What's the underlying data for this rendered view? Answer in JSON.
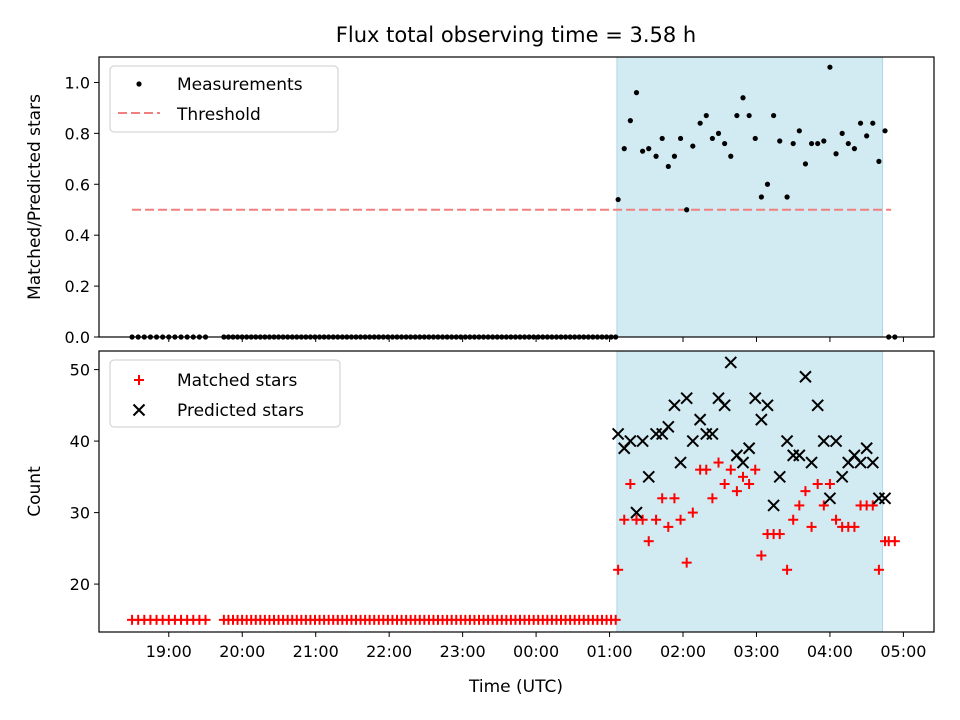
{
  "title": "Flux total observing time = 3.58 h",
  "colors": {
    "measurement": "#000000",
    "threshold": "#f08080",
    "matched": "#ff0000",
    "predicted": "#000000",
    "shade": "#add8e6"
  },
  "chart_data": [
    {
      "type": "scatter",
      "ylabel": "Matched/Predicted stars",
      "ylim": [
        0,
        1.1
      ],
      "yticks": [
        0.0,
        0.2,
        0.4,
        0.6,
        0.8,
        1.0
      ],
      "ytick_labels": [
        "0.0",
        "0.2",
        "0.4",
        "0.6",
        "0.8",
        "1.0"
      ],
      "legend": {
        "placement": "top-left",
        "entries": [
          "Measurements",
          "Threshold"
        ]
      },
      "shaded_span": [
        "01:06",
        "04:43"
      ],
      "threshold": {
        "name": "Threshold",
        "value": 0.5,
        "x_range": [
          "18:30",
          "04:50"
        ]
      },
      "series": [
        {
          "name": "Measurements",
          "zero_segments": [
            [
              "18:30",
              "19:30",
              13
            ],
            [
              "19:45",
              "01:05",
              87
            ],
            [
              "04:48",
              "04:53",
              2
            ]
          ],
          "points": [
            [
              "01:07",
              0.54
            ],
            [
              "01:12",
              0.74
            ],
            [
              "01:17",
              0.85
            ],
            [
              "01:22",
              0.96
            ],
            [
              "01:27",
              0.73
            ],
            [
              "01:32",
              0.74
            ],
            [
              "01:38",
              0.71
            ],
            [
              "01:43",
              0.78
            ],
            [
              "01:48",
              0.67
            ],
            [
              "01:53",
              0.71
            ],
            [
              "01:58",
              0.78
            ],
            [
              "02:03",
              0.5
            ],
            [
              "02:08",
              0.75
            ],
            [
              "02:14",
              0.84
            ],
            [
              "02:19",
              0.87
            ],
            [
              "02:24",
              0.78
            ],
            [
              "02:29",
              0.8
            ],
            [
              "02:34",
              0.76
            ],
            [
              "02:39",
              0.71
            ],
            [
              "02:44",
              0.87
            ],
            [
              "02:49",
              0.94
            ],
            [
              "02:54",
              0.87
            ],
            [
              "02:59",
              0.78
            ],
            [
              "03:04",
              0.55
            ],
            [
              "03:09",
              0.6
            ],
            [
              "03:14",
              0.87
            ],
            [
              "03:19",
              0.77
            ],
            [
              "03:25",
              0.55
            ],
            [
              "03:30",
              0.76
            ],
            [
              "03:35",
              0.81
            ],
            [
              "03:40",
              0.68
            ],
            [
              "03:45",
              0.76
            ],
            [
              "03:50",
              0.76
            ],
            [
              "03:55",
              0.77
            ],
            [
              "04:00",
              1.06
            ],
            [
              "04:05",
              0.72
            ],
            [
              "04:10",
              0.8
            ],
            [
              "04:15",
              0.76
            ],
            [
              "04:20",
              0.74
            ],
            [
              "04:25",
              0.84
            ],
            [
              "04:30",
              0.79
            ],
            [
              "04:35",
              0.84
            ],
            [
              "04:40",
              0.69
            ],
            [
              "04:45",
              0.81
            ]
          ]
        }
      ]
    },
    {
      "type": "scatter",
      "xlabel": "Time (UTC)",
      "ylabel": "Count",
      "ylim": [
        13.3,
        52.6
      ],
      "yticks": [
        20,
        30,
        40,
        50
      ],
      "ytick_labels": [
        "20",
        "30",
        "40",
        "50"
      ],
      "xticks": [
        "19:00",
        "20:00",
        "21:00",
        "22:00",
        "23:00",
        "00:00",
        "01:00",
        "02:00",
        "03:00",
        "04:00",
        "05:00"
      ],
      "xlim": [
        "18:03",
        "05:25"
      ],
      "legend": {
        "placement": "top-left",
        "entries": [
          "Matched stars",
          "Predicted stars"
        ]
      },
      "shaded_span": [
        "01:06",
        "04:43"
      ],
      "series": [
        {
          "name": "Matched stars",
          "constant_segments": [
            [
              "18:30",
              "19:30",
              13,
              15
            ],
            [
              "19:45",
              "01:05",
              87,
              15
            ]
          ],
          "points": [
            [
              "01:07",
              22
            ],
            [
              "01:12",
              29
            ],
            [
              "01:17",
              34
            ],
            [
              "01:22",
              29
            ],
            [
              "01:27",
              29
            ],
            [
              "01:32",
              26
            ],
            [
              "01:38",
              29
            ],
            [
              "01:43",
              32
            ],
            [
              "01:48",
              28
            ],
            [
              "01:53",
              32
            ],
            [
              "01:58",
              29
            ],
            [
              "02:03",
              23
            ],
            [
              "02:08",
              30
            ],
            [
              "02:14",
              36
            ],
            [
              "02:19",
              36
            ],
            [
              "02:24",
              32
            ],
            [
              "02:29",
              37
            ],
            [
              "02:34",
              34
            ],
            [
              "02:39",
              36
            ],
            [
              "02:44",
              33
            ],
            [
              "02:49",
              35
            ],
            [
              "02:54",
              34
            ],
            [
              "02:59",
              36
            ],
            [
              "03:04",
              24
            ],
            [
              "03:09",
              27
            ],
            [
              "03:14",
              27
            ],
            [
              "03:19",
              27
            ],
            [
              "03:25",
              22
            ],
            [
              "03:30",
              29
            ],
            [
              "03:35",
              31
            ],
            [
              "03:40",
              33
            ],
            [
              "03:45",
              28
            ],
            [
              "03:50",
              34
            ],
            [
              "03:55",
              31
            ],
            [
              "04:00",
              34
            ],
            [
              "04:05",
              29
            ],
            [
              "04:10",
              28
            ],
            [
              "04:15",
              28
            ],
            [
              "04:20",
              28
            ],
            [
              "04:25",
              31
            ],
            [
              "04:30",
              31
            ],
            [
              "04:35",
              31
            ],
            [
              "04:40",
              22
            ],
            [
              "04:45",
              26
            ],
            [
              "04:48",
              26
            ],
            [
              "04:53",
              26
            ]
          ]
        },
        {
          "name": "Predicted stars",
          "points": [
            [
              "01:07",
              41
            ],
            [
              "01:12",
              39
            ],
            [
              "01:17",
              40
            ],
            [
              "01:22",
              30
            ],
            [
              "01:27",
              40
            ],
            [
              "01:32",
              35
            ],
            [
              "01:38",
              41
            ],
            [
              "01:43",
              41
            ],
            [
              "01:48",
              42
            ],
            [
              "01:53",
              45
            ],
            [
              "01:58",
              37
            ],
            [
              "02:03",
              46
            ],
            [
              "02:08",
              40
            ],
            [
              "02:14",
              43
            ],
            [
              "02:19",
              41
            ],
            [
              "02:24",
              41
            ],
            [
              "02:29",
              46
            ],
            [
              "02:34",
              45
            ],
            [
              "02:39",
              51
            ],
            [
              "02:44",
              38
            ],
            [
              "02:49",
              37
            ],
            [
              "02:54",
              39
            ],
            [
              "02:59",
              46
            ],
            [
              "03:04",
              43
            ],
            [
              "03:09",
              45
            ],
            [
              "03:14",
              31
            ],
            [
              "03:19",
              35
            ],
            [
              "03:25",
              40
            ],
            [
              "03:30",
              38
            ],
            [
              "03:35",
              38
            ],
            [
              "03:40",
              49
            ],
            [
              "03:45",
              37
            ],
            [
              "03:50",
              45
            ],
            [
              "03:55",
              40
            ],
            [
              "04:00",
              32
            ],
            [
              "04:05",
              40
            ],
            [
              "04:10",
              35
            ],
            [
              "04:15",
              37
            ],
            [
              "04:20",
              38
            ],
            [
              "04:25",
              37
            ],
            [
              "04:30",
              39
            ],
            [
              "04:35",
              37
            ],
            [
              "04:40",
              32
            ],
            [
              "04:45",
              32
            ]
          ]
        }
      ]
    }
  ]
}
